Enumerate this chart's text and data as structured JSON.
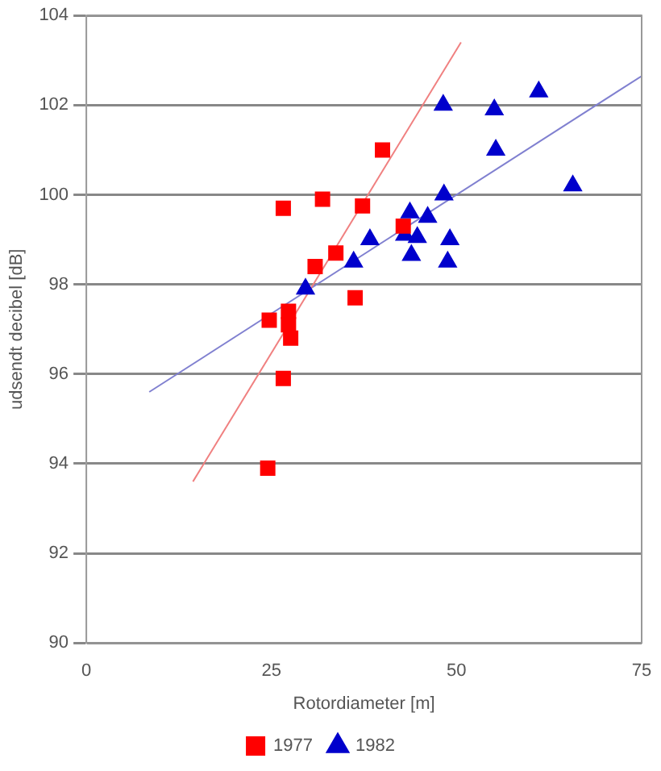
{
  "chart_data": {
    "type": "scatter",
    "xlabel": "Rotordiameter [m]",
    "ylabel": "udsendt decibel [dB]",
    "xlim": [
      0,
      75
    ],
    "xticks": [
      0,
      25,
      50,
      75
    ],
    "ylim": [
      90,
      104
    ],
    "yticks": [
      90,
      92,
      94,
      96,
      98,
      100,
      102,
      104
    ],
    "grid": "y",
    "legend": "bottom",
    "series": [
      {
        "name": "1977",
        "color": "#ff0000",
        "marker": "square",
        "x": [
          26.6,
          31.9,
          37.3,
          40.0,
          42.8,
          33.7,
          30.9,
          36.3,
          24.7,
          27.3,
          27.3,
          27.6,
          26.6,
          24.5
        ],
        "values": [
          99.7,
          99.9,
          99.75,
          101.0,
          99.3,
          98.7,
          98.4,
          97.7,
          97.2,
          97.4,
          97.1,
          96.8,
          95.9,
          93.9
        ]
      },
      {
        "name": "1982",
        "color": "#0000cc",
        "marker": "triangle",
        "x": [
          48.2,
          55.1,
          61.1,
          55.3,
          65.7,
          48.3,
          43.7,
          46.1,
          38.3,
          43.0,
          44.7,
          43.9,
          49.1,
          48.8,
          36.1,
          29.6
        ],
        "values": [
          102.0,
          101.9,
          102.3,
          101.0,
          100.2,
          100.0,
          99.6,
          99.5,
          99.0,
          99.1,
          99.05,
          98.65,
          99.0,
          98.5,
          98.5,
          97.9
        ]
      },
      {
        "type": "line",
        "color": "#f08080",
        "marker": "none",
        "x": [
          14.4,
          50.6
        ],
        "values": [
          93.6,
          103.4
        ]
      },
      {
        "type": "line",
        "color": "#8080d0",
        "marker": "none",
        "x": [
          8.5,
          75
        ],
        "values": [
          95.6,
          102.65
        ]
      }
    ]
  }
}
